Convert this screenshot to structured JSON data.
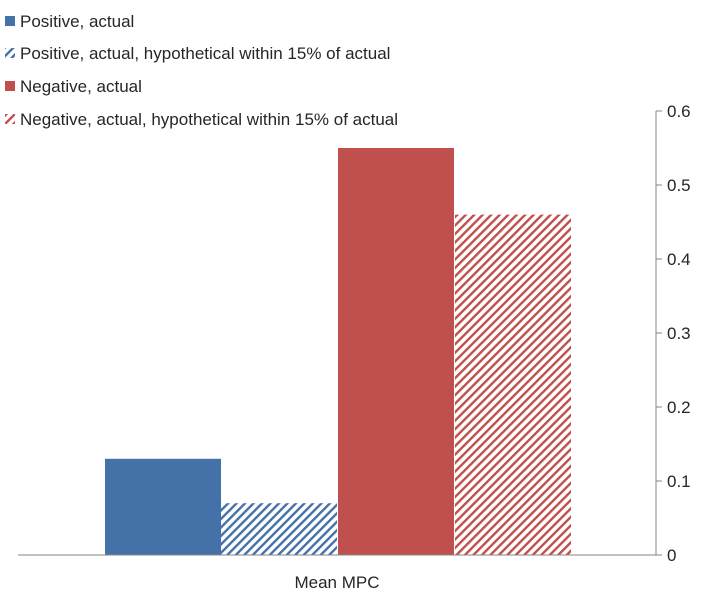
{
  "chart_data": {
    "type": "bar",
    "categories": [
      "Mean MPC"
    ],
    "series": [
      {
        "name": "Positive, actual",
        "values": [
          0.13
        ],
        "color": "#4472a8",
        "pattern": "solid"
      },
      {
        "name": "Positive, actual, hypothetical within 15% of actual",
        "values": [
          0.07
        ],
        "color": "#4472a8",
        "pattern": "hatched"
      },
      {
        "name": "Negative, actual",
        "values": [
          0.55
        ],
        "color": "#c0504d",
        "pattern": "solid"
      },
      {
        "name": "Negative, actual, hypothetical within 15% of actual",
        "values": [
          0.46
        ],
        "color": "#c0504d",
        "pattern": "hatched"
      }
    ],
    "yticks": [
      "0",
      "0.1",
      "0.2",
      "0.3",
      "0.4",
      "0.5",
      "0.6"
    ],
    "ylim": [
      0,
      0.6
    ],
    "y_axis_side": "right",
    "legend_position": "top-left",
    "grid": false,
    "title": "",
    "xlabel": "",
    "ylabel": ""
  }
}
